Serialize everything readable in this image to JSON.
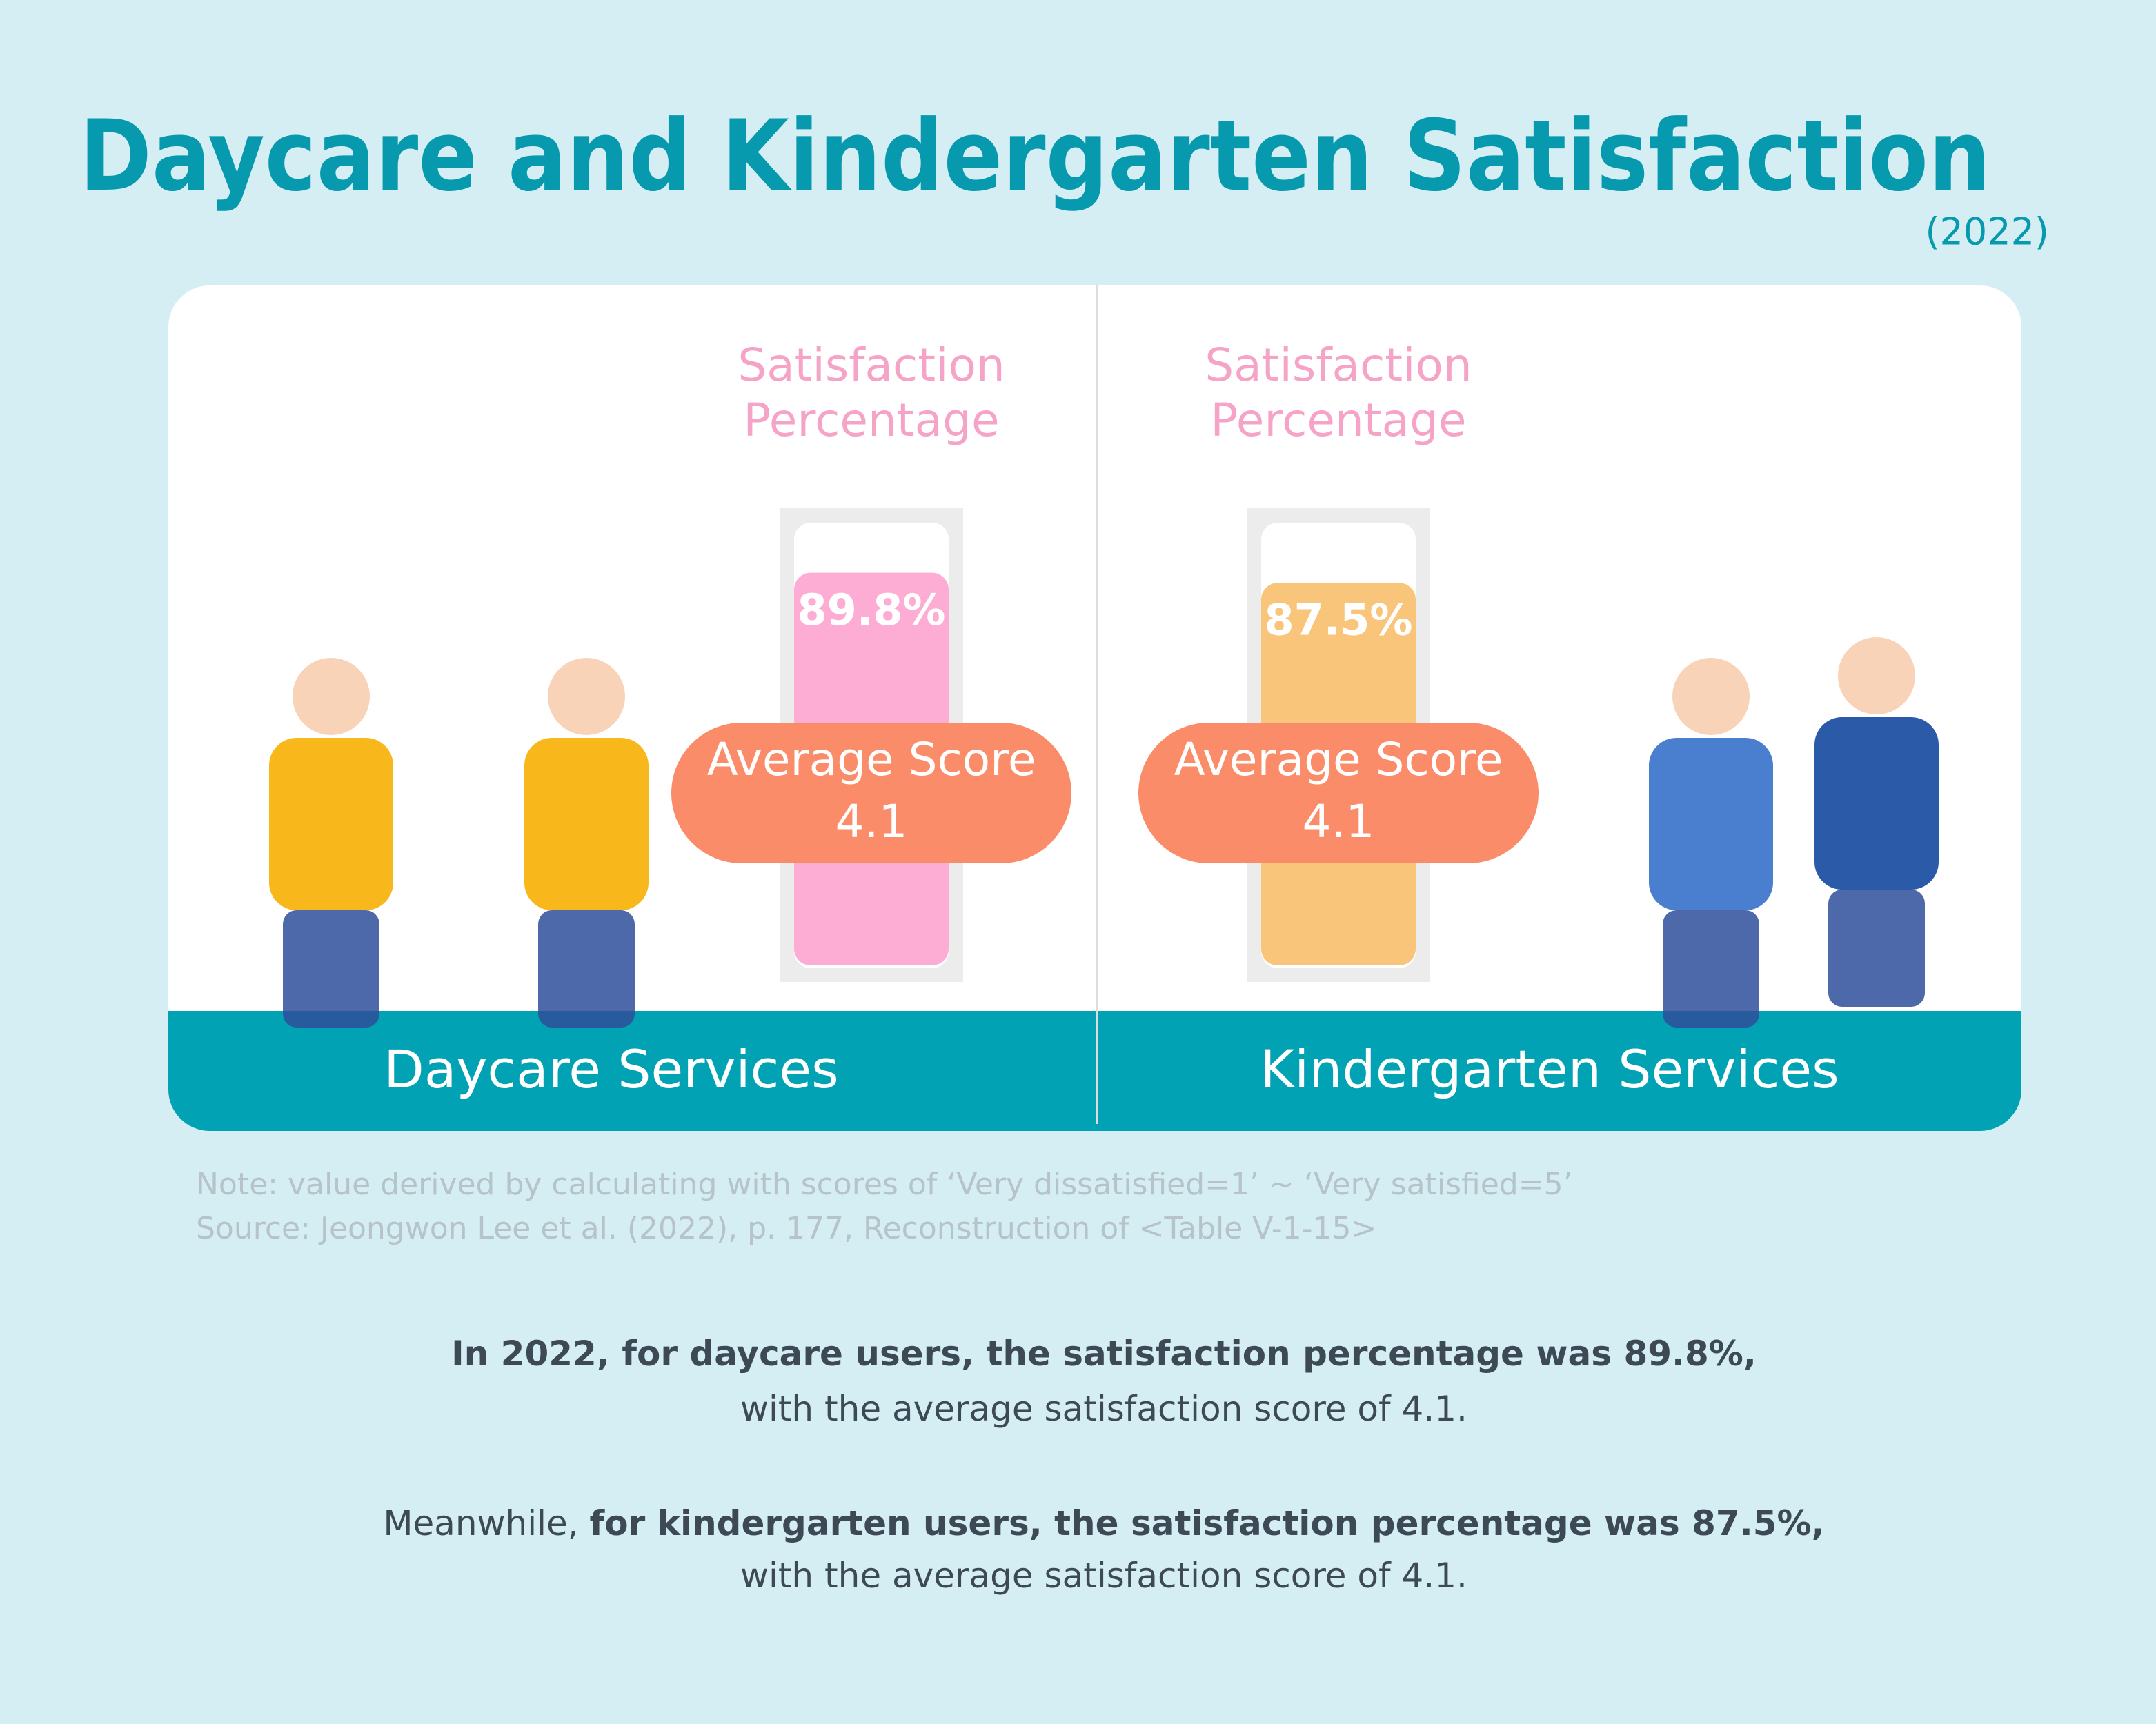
{
  "header": {
    "title": "Daycare and Kindergarten Satisfaction",
    "subtitle": "(2022)"
  },
  "chart_data": [
    {
      "type": "bar",
      "title": "Satisfaction Percentage",
      "categories": [
        "Daycare Services"
      ],
      "values": [
        89.8
      ],
      "value_labels": [
        "89.8%"
      ],
      "color": "#fdadd3",
      "ylim": [
        0,
        100
      ],
      "average_score_label": "Average Score",
      "average_score": 4.1
    },
    {
      "type": "bar",
      "title": "Satisfaction Percentage",
      "categories": [
        "Kindergarten Services"
      ],
      "values": [
        87.5
      ],
      "value_labels": [
        "87.5%"
      ],
      "color": "#f8c57a",
      "ylim": [
        0,
        100
      ],
      "average_score_label": "Average Score",
      "average_score": 4.1
    }
  ],
  "notes": [
    "Note: value derived by calculating with scores of ‘Very dissatisfied=1’ ~ ‘Very satisfied=5’",
    "Source: Jeongwon Lee et al. (2022), p. 177, Reconstruction of <Table V-1-15>"
  ],
  "summary": [
    [
      {
        "text": "In 2022, for daycare users, the satisfaction percentage was 89.8%,",
        "bold": true
      }
    ],
    [
      {
        "text": "with the average satisfaction score of 4.1.",
        "bold": false
      }
    ],
    [
      {
        "text": "Meanwhile, ",
        "bold": false
      },
      {
        "text": "for kindergarten users, the satisfaction percentage was 87.5%,",
        "bold": true
      }
    ],
    [
      {
        "text": "with the average satisfaction score of 4.1.",
        "bold": false
      }
    ]
  ]
}
